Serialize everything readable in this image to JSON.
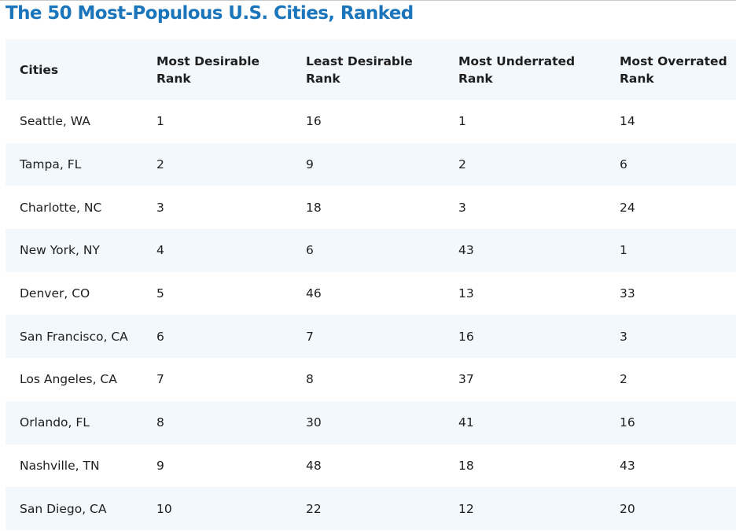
{
  "title": "The 50 Most-Populous U.S. Cities, Ranked",
  "colors": {
    "title": "#1b75bb",
    "header_background": "#f3f8fc",
    "stripe_background": "#f3f8fc",
    "text": "#1e1e1e"
  },
  "table": {
    "headers": [
      "Cities",
      "Most Desirable Rank",
      "Least Desirable Rank",
      "Most Underrated Rank",
      "Most Overrated Rank"
    ],
    "rows": [
      [
        "Seattle, WA",
        "1",
        "16",
        "1",
        "14"
      ],
      [
        "Tampa, FL",
        "2",
        "9",
        "2",
        "6"
      ],
      [
        "Charlotte, NC",
        "3",
        "18",
        "3",
        "24"
      ],
      [
        "New York, NY",
        "4",
        "6",
        "43",
        "1"
      ],
      [
        "Denver, CO",
        "5",
        "46",
        "13",
        "33"
      ],
      [
        "San Francisco, CA",
        "6",
        "7",
        "16",
        "3"
      ],
      [
        "Los Angeles, CA",
        "7",
        "8",
        "37",
        "2"
      ],
      [
        "Orlando, FL",
        "8",
        "30",
        "41",
        "16"
      ],
      [
        "Nashville, TN",
        "9",
        "48",
        "18",
        "43"
      ],
      [
        "San Diego, CA",
        "10",
        "22",
        "12",
        "20"
      ]
    ]
  }
}
